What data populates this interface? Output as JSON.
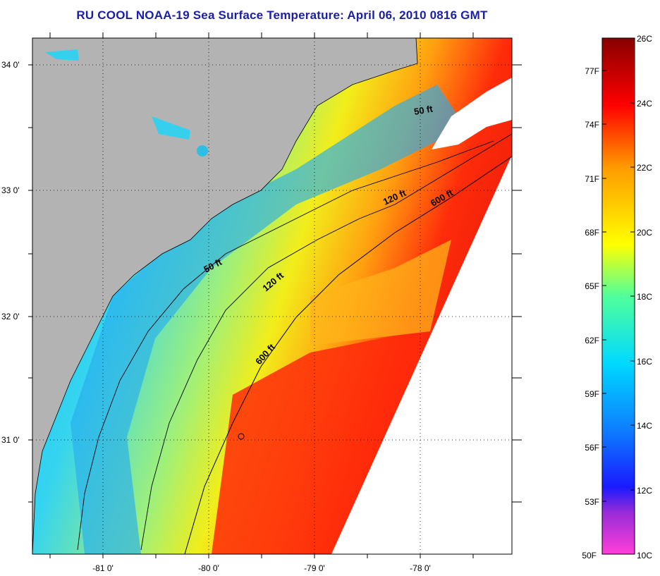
{
  "title": "RU COOL  NOAA-19  Sea Surface Temperature:  April 06, 2010 0816 GMT",
  "map": {
    "lat_labels": [
      "34 0'",
      "33 0'",
      "32 0'",
      "31 0'"
    ],
    "lon_labels": [
      "-81 0'",
      "-80 0'",
      "-79 0'",
      "-78 0'"
    ],
    "contour_labels": [
      "50 ft",
      "50 ft",
      "120 ft",
      "120 ft",
      "600 ft",
      "600 ft"
    ],
    "colors": {
      "land": "#b3b3b3",
      "coastline": "#000000",
      "no_data": "#ffffff"
    }
  },
  "colorbar": {
    "celsius_labels": [
      "26C",
      "24C",
      "22C",
      "20C",
      "18C",
      "16C",
      "14C",
      "12C",
      "10C"
    ],
    "fahrenheit_labels": [
      "77F",
      "74F",
      "71F",
      "68F",
      "65F",
      "62F",
      "59F",
      "56F",
      "53F",
      "50F"
    ],
    "colors": [
      "#ff3fd9",
      "#9a2bd8",
      "#1a1aff",
      "#0d7dff",
      "#00d9ff",
      "#50ff9a",
      "#ffff00",
      "#ff9a00",
      "#ff0000",
      "#880000"
    ]
  }
}
